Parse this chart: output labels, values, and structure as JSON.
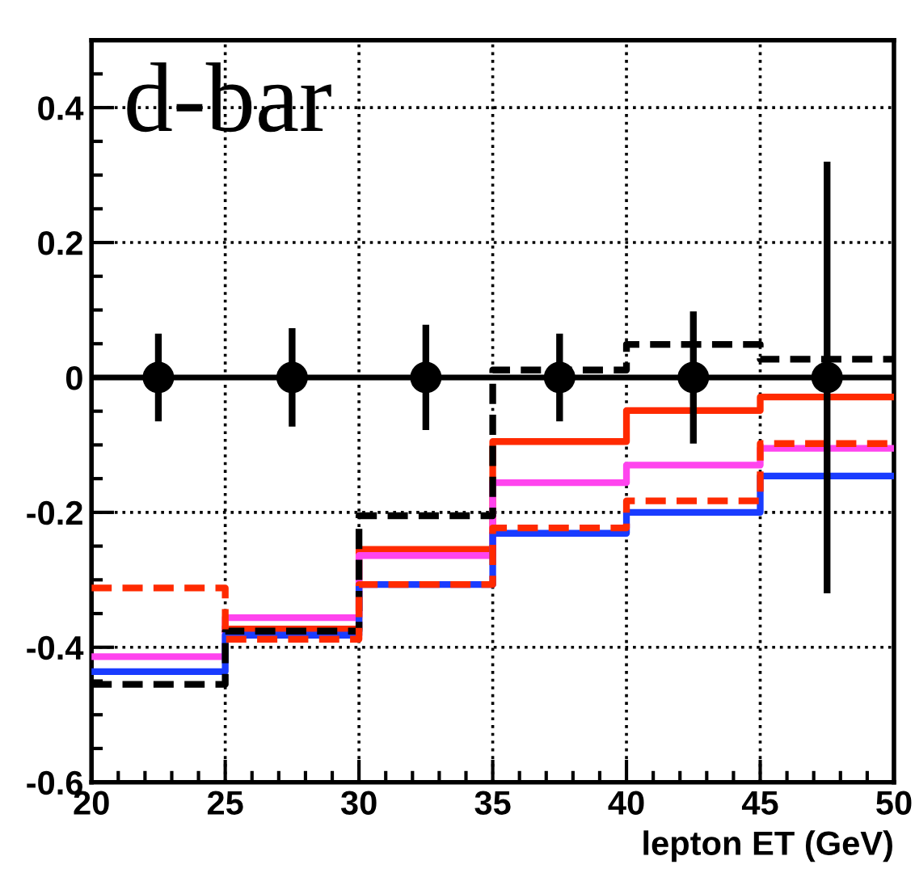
{
  "chart_data": {
    "type": "step",
    "xlabel": "lepton ET (GeV)",
    "annotations": [
      "d-bar"
    ],
    "xlim": [
      20,
      50
    ],
    "xticks": [
      20,
      25,
      30,
      35,
      40,
      45,
      50
    ],
    "ylim": [
      -0.6,
      0.5
    ],
    "yticks": [
      -0.6,
      -0.4,
      -0.2,
      0,
      0.2,
      0.4
    ],
    "grid": true,
    "line_style": "solid",
    "ref_lines": [
      {
        "axis": "y",
        "value": 0,
        "color": "#000000",
        "line_style": "solid"
      }
    ],
    "series": [
      {
        "color": "#000000",
        "line_style": "dashed",
        "x": [
          20,
          25,
          30,
          35,
          40,
          45,
          50
        ],
        "values": [
          -0.455,
          -0.376,
          -0.205,
          0.011,
          0.049,
          0.027,
          0.027
        ]
      },
      {
        "color": "#ff2a00",
        "line_style": "dashed",
        "x": [
          20,
          25,
          30,
          35,
          40,
          45,
          50
        ],
        "values": [
          -0.312,
          -0.388,
          -0.307,
          -0.223,
          -0.183,
          -0.098,
          -0.098
        ]
      },
      {
        "color": "#ff2a00",
        "x": [
          25,
          30,
          35,
          40,
          45,
          50
        ],
        "values": [
          -0.373,
          -0.255,
          -0.095,
          -0.049,
          -0.029,
          -0.029
        ]
      },
      {
        "color": "#ff44ee",
        "x": [
          20,
          25,
          30,
          35,
          40,
          45,
          50
        ],
        "values": [
          -0.414,
          -0.356,
          -0.264,
          -0.156,
          -0.13,
          -0.105,
          -0.105
        ]
      },
      {
        "color": "#1a3cff",
        "x": [
          20,
          25,
          30,
          35,
          40,
          45,
          50
        ],
        "values": [
          -0.436,
          -0.382,
          -0.307,
          -0.231,
          -0.2,
          -0.146,
          -0.146
        ]
      },
      {
        "type": "scatter",
        "color": "#000000",
        "marker": "circle",
        "x": [
          22.5,
          27.5,
          32.5,
          37.5,
          42.5,
          47.5
        ],
        "values": [
          0,
          0,
          0,
          0,
          0,
          0
        ],
        "errors": [
          0.065,
          0.073,
          0.078,
          0.065,
          0.098,
          0.32
        ]
      }
    ]
  }
}
